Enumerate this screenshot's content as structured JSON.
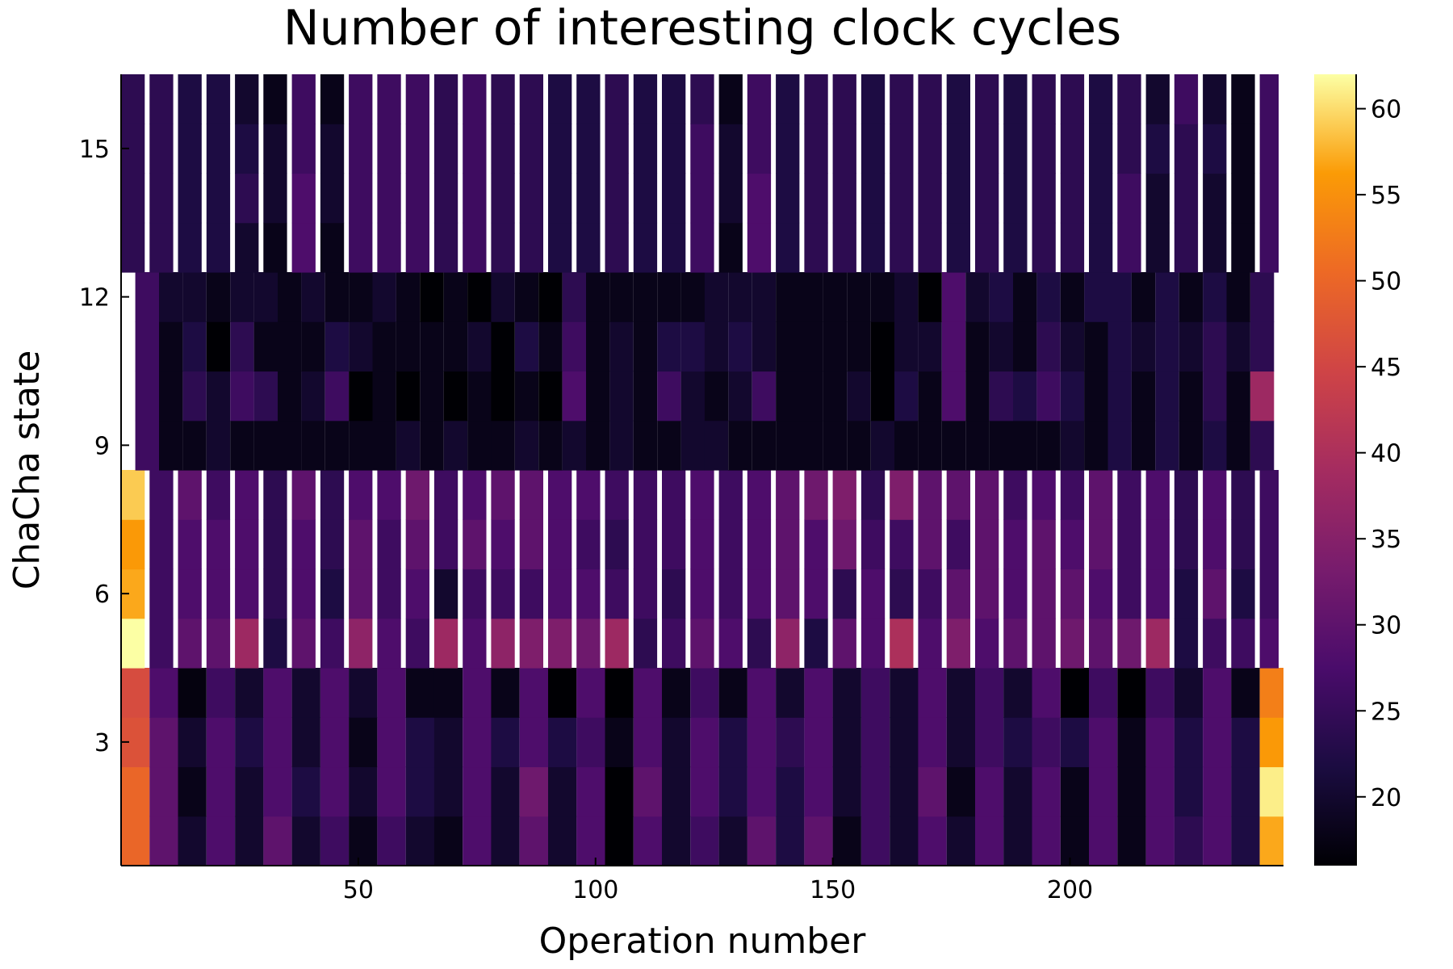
{
  "chart_data": {
    "type": "heatmap",
    "title": "Number of interesting clock cycles",
    "xlabel": "Operation number",
    "ylabel": "ChaCha state",
    "xlim": [
      0,
      245
    ],
    "ylim": [
      0.5,
      16.5
    ],
    "x_ticks": [
      50,
      100,
      150,
      200
    ],
    "y_ticks": [
      3,
      6,
      9,
      12,
      15
    ],
    "colorbar": {
      "colormap": "inferno",
      "range": [
        16,
        62
      ],
      "ticks": [
        20,
        25,
        30,
        35,
        40,
        45,
        50,
        55,
        60
      ]
    },
    "grid": false,
    "legend": "none",
    "bands": [
      {
        "rows": [
          1,
          4
        ],
        "x_start": 0,
        "x_step": 6,
        "columns": 41,
        "stripe_gap": false,
        "row_values": [
          [
            50,
            30,
            20,
            28,
            20,
            30,
            20,
            26,
            18,
            26,
            20,
            18,
            28,
            20,
            30,
            20,
            28,
            16,
            28,
            20,
            26,
            20,
            30,
            22,
            30,
            18,
            26,
            20,
            28,
            20,
            28,
            20,
            28,
            18,
            28,
            18,
            28,
            24,
            28,
            22,
            57
          ],
          [
            50,
            30,
            18,
            28,
            20,
            28,
            22,
            28,
            20,
            28,
            22,
            20,
            28,
            20,
            32,
            20,
            28,
            16,
            30,
            20,
            28,
            22,
            28,
            22,
            28,
            20,
            26,
            20,
            30,
            18,
            28,
            20,
            28,
            18,
            28,
            18,
            28,
            22,
            28,
            22,
            61
          ],
          [
            47,
            30,
            20,
            28,
            22,
            28,
            20,
            28,
            18,
            28,
            22,
            20,
            28,
            22,
            28,
            22,
            26,
            18,
            28,
            20,
            28,
            22,
            28,
            24,
            28,
            20,
            26,
            20,
            28,
            20,
            26,
            22,
            26,
            22,
            28,
            18,
            28,
            22,
            28,
            22,
            56
          ],
          [
            46,
            28,
            17,
            26,
            20,
            28,
            20,
            28,
            20,
            28,
            18,
            18,
            28,
            18,
            28,
            16,
            28,
            16,
            28,
            18,
            26,
            18,
            28,
            20,
            28,
            20,
            26,
            20,
            28,
            20,
            26,
            20,
            28,
            16,
            26,
            16,
            26,
            20,
            28,
            18,
            53
          ]
        ]
      },
      {
        "rows": [
          5,
          8
        ],
        "x_start": 0,
        "x_step": 6,
        "columns": 41,
        "stripe_gap": true,
        "row_values": [
          [
            62,
            26,
            30,
            30,
            38,
            22,
            30,
            26,
            36,
            28,
            26,
            38,
            28,
            36,
            34,
            34,
            32,
            38,
            24,
            26,
            30,
            28,
            24,
            36,
            22,
            30,
            28,
            40,
            28,
            34,
            28,
            30,
            30,
            32,
            30,
            32,
            38,
            22,
            26,
            26,
            28
          ],
          [
            57,
            26,
            28,
            28,
            28,
            24,
            28,
            22,
            30,
            26,
            28,
            20,
            26,
            26,
            26,
            28,
            28,
            26,
            26,
            24,
            28,
            26,
            28,
            30,
            28,
            24,
            28,
            24,
            26,
            30,
            30,
            28,
            30,
            30,
            28,
            26,
            28,
            22,
            30,
            22,
            26
          ],
          [
            56,
            26,
            28,
            28,
            28,
            24,
            28,
            24,
            30,
            26,
            30,
            26,
            30,
            28,
            30,
            28,
            26,
            24,
            26,
            26,
            28,
            26,
            28,
            30,
            28,
            32,
            26,
            26,
            30,
            26,
            30,
            28,
            30,
            28,
            30,
            26,
            28,
            24,
            28,
            24,
            26
          ],
          [
            59,
            26,
            30,
            26,
            28,
            24,
            30,
            24,
            28,
            28,
            32,
            26,
            28,
            30,
            30,
            28,
            28,
            26,
            26,
            26,
            28,
            26,
            28,
            30,
            32,
            34,
            24,
            34,
            30,
            30,
            30,
            26,
            28,
            26,
            30,
            26,
            28,
            24,
            28,
            24,
            26
          ]
        ]
      },
      {
        "rows": [
          9,
          12
        ],
        "x_start": 3,
        "x_step": 5,
        "columns": 48,
        "stripe_gap": false,
        "row_values": [
          [
            26,
            18,
            18,
            20,
            18,
            18,
            18,
            18,
            18,
            18,
            18,
            20,
            18,
            20,
            18,
            18,
            20,
            18,
            20,
            18,
            20,
            18,
            18,
            20,
            20,
            18,
            18,
            18,
            18,
            18,
            18,
            20,
            18,
            18,
            18,
            18,
            18,
            18,
            18,
            20,
            18,
            22,
            18,
            22,
            18,
            22,
            18,
            24
          ],
          [
            26,
            18,
            24,
            20,
            26,
            24,
            18,
            20,
            26,
            16,
            18,
            16,
            18,
            16,
            18,
            16,
            18,
            16,
            28,
            18,
            20,
            18,
            26,
            20,
            18,
            20,
            26,
            18,
            18,
            18,
            20,
            16,
            22,
            18,
            28,
            18,
            24,
            22,
            26,
            22,
            18,
            22,
            18,
            22,
            18,
            24,
            18,
            38
          ],
          [
            26,
            18,
            22,
            16,
            24,
            18,
            18,
            18,
            22,
            20,
            18,
            18,
            18,
            18,
            20,
            16,
            22,
            18,
            26,
            18,
            20,
            18,
            22,
            22,
            20,
            22,
            20,
            18,
            18,
            18,
            18,
            16,
            20,
            20,
            28,
            18,
            20,
            18,
            24,
            20,
            18,
            22,
            20,
            22,
            20,
            24,
            20,
            24
          ],
          [
            26,
            20,
            20,
            18,
            20,
            20,
            18,
            20,
            18,
            18,
            20,
            18,
            16,
            18,
            16,
            20,
            18,
            16,
            24,
            18,
            18,
            18,
            18,
            18,
            20,
            20,
            20,
            18,
            18,
            18,
            18,
            18,
            20,
            16,
            28,
            20,
            22,
            18,
            22,
            18,
            22,
            22,
            18,
            22,
            18,
            22,
            18,
            24
          ]
        ]
      },
      {
        "rows": [
          13,
          16
        ],
        "x_start": 0,
        "x_step": 6,
        "columns": 41,
        "stripe_gap": true,
        "row_values": [
          [
            24,
            24,
            22,
            22,
            20,
            18,
            28,
            18,
            26,
            26,
            26,
            24,
            26,
            24,
            24,
            22,
            22,
            24,
            22,
            22,
            26,
            18,
            28,
            22,
            24,
            24,
            22,
            24,
            24,
            22,
            24,
            22,
            24,
            24,
            22,
            26,
            20,
            24,
            20,
            18,
            26
          ],
          [
            24,
            24,
            22,
            22,
            24,
            20,
            28,
            20,
            26,
            26,
            26,
            24,
            26,
            24,
            24,
            22,
            22,
            24,
            22,
            22,
            26,
            20,
            28,
            22,
            24,
            24,
            22,
            24,
            24,
            22,
            24,
            22,
            24,
            24,
            22,
            26,
            20,
            24,
            20,
            18,
            26
          ],
          [
            24,
            24,
            22,
            22,
            22,
            20,
            26,
            20,
            26,
            26,
            26,
            24,
            26,
            24,
            24,
            22,
            22,
            24,
            22,
            22,
            26,
            20,
            26,
            22,
            24,
            24,
            22,
            24,
            24,
            22,
            24,
            22,
            24,
            24,
            22,
            24,
            22,
            24,
            22,
            18,
            26
          ],
          [
            24,
            24,
            22,
            22,
            20,
            18,
            26,
            18,
            26,
            26,
            26,
            24,
            26,
            24,
            24,
            22,
            22,
            24,
            22,
            22,
            24,
            18,
            26,
            22,
            24,
            24,
            22,
            24,
            24,
            22,
            24,
            22,
            24,
            24,
            22,
            24,
            20,
            26,
            20,
            18,
            26
          ]
        ]
      }
    ]
  }
}
